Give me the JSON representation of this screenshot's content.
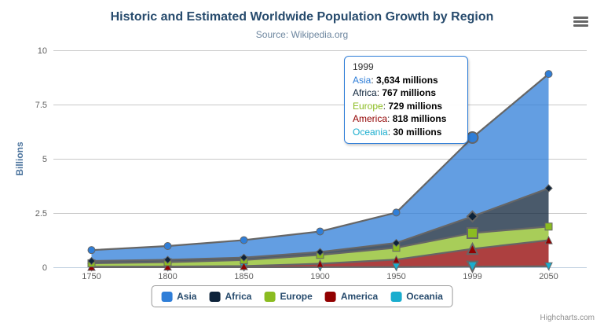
{
  "chart_data": {
    "type": "area",
    "stacking": "normal",
    "title": "Historic and Estimated Worldwide Population Growth by Region",
    "subtitle": "Source: Wikipedia.org",
    "xlabel": "",
    "ylabel": "Billions",
    "categories": [
      "1750",
      "1800",
      "1850",
      "1900",
      "1950",
      "1999",
      "2050"
    ],
    "yticks": [
      "0",
      "2.5",
      "5",
      "7.5",
      "10"
    ],
    "ylim": [
      0,
      10
    ],
    "values_unit": "millions",
    "grid": true,
    "legend_position": "bottom-center",
    "series": [
      {
        "name": "Asia",
        "color": "#2f7ed8",
        "marker": "circle",
        "values": [
          502,
          635,
          809,
          947,
          1402,
          3634,
          5268
        ]
      },
      {
        "name": "Africa",
        "color": "#0d233a",
        "marker": "diamond",
        "values": [
          106,
          107,
          111,
          133,
          221,
          767,
          1766
        ]
      },
      {
        "name": "Europe",
        "color": "#8bbc21",
        "marker": "square",
        "values": [
          163,
          203,
          276,
          408,
          547,
          729,
          628
        ]
      },
      {
        "name": "America",
        "color": "#910000",
        "marker": "triangle",
        "values": [
          18,
          31,
          54,
          156,
          339,
          818,
          1201
        ]
      },
      {
        "name": "Oceania",
        "color": "#1aadce",
        "marker": "triangle-down",
        "values": [
          2,
          2,
          2,
          6,
          13,
          30,
          46
        ]
      }
    ]
  },
  "tooltip": {
    "year": "1999",
    "rows": [
      {
        "name": "Asia",
        "color": "#2f7ed8",
        "value": "3,634",
        "unit": "millions"
      },
      {
        "name": "Africa",
        "color": "#0d233a",
        "value": "767",
        "unit": "millions"
      },
      {
        "name": "Europe",
        "color": "#8bbc21",
        "value": "729",
        "unit": "millions"
      },
      {
        "name": "America",
        "color": "#910000",
        "value": "818",
        "unit": "millions"
      },
      {
        "name": "Oceania",
        "color": "#1aadce",
        "value": "30",
        "unit": "millions"
      }
    ]
  },
  "credits": {
    "label": "Highcharts.com"
  },
  "menu": {
    "icon": "hamburger-icon"
  },
  "theme": {
    "background": "#ffffff",
    "title_color": "#274b6d",
    "subtitle_color": "#6d869f",
    "axis_title_color": "#4d759e",
    "axis_label_color": "#606060",
    "grid_color": "#c8c8c8",
    "axis_line_color": "#c0d0e0",
    "series_line_color": "#666666",
    "legend_text_color": "#274b6d",
    "legend_border_color": "#999999",
    "tooltip_border_color": "#2f7ed8",
    "credits_color": "#909090",
    "menu_icon_color": "#666666"
  }
}
